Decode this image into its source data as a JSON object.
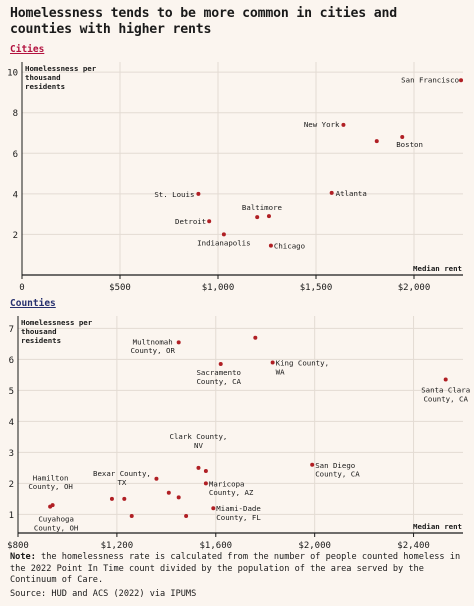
{
  "title": "Homelessness tends to be more common in cities and counties with higher rents",
  "note": {
    "label": "Note:",
    "text": " the homelessness rate is calculated from the number of people counted homeless in the 2022 Point In Time count divided by the population of the area served by the Continuum of Care."
  },
  "source": "Source: HUD and ACS (2022) via IPUMS",
  "colors": {
    "background": "#fbf5ef",
    "point": "#b01f24",
    "grid": "#e3dbd3",
    "axis": "#1a1a1a",
    "cities_heading": "#b3123f",
    "counties_heading": "#26306e"
  },
  "chart_data": [
    {
      "type": "scatter",
      "section_label": "Cities",
      "title": "",
      "xlabel": "Median rent",
      "ylabel": "Homelessness per thousand residents",
      "xlim": [
        0,
        2250
      ],
      "ylim": [
        0,
        10.5
      ],
      "x_ticks": [
        0,
        500,
        1000,
        1500,
        2000
      ],
      "x_tick_labels": [
        "0",
        "$500",
        "$1,000",
        "$1,500",
        "$2,000"
      ],
      "y_ticks": [
        2,
        4,
        6,
        8,
        10
      ],
      "y_tick_labels": [
        "2",
        "4",
        "6",
        "8",
        "10"
      ],
      "grid": true,
      "points": [
        {
          "x": 2240,
          "y": 9.6,
          "label": "San Francisco",
          "anchor": "end",
          "dx": -2,
          "dy": 2
        },
        {
          "x": 1640,
          "y": 7.4,
          "label": "New York",
          "anchor": "end",
          "dx": -4,
          "dy": 2
        },
        {
          "x": 1940,
          "y": 6.8,
          "label": "Boston",
          "anchor": "start",
          "dx": -6,
          "dy": 10
        },
        {
          "x": 1810,
          "y": 6.6,
          "label": "",
          "anchor": "start",
          "dx": 0,
          "dy": 0
        },
        {
          "x": 1580,
          "y": 4.05,
          "label": "Atlanta",
          "anchor": "start",
          "dx": 4,
          "dy": 3
        },
        {
          "x": 900,
          "y": 4.0,
          "label": "St. Louis",
          "anchor": "end",
          "dx": -4,
          "dy": 3
        },
        {
          "x": 1260,
          "y": 2.9,
          "label": "Baltimore",
          "anchor": "middle",
          "dx": -7,
          "dy": -6
        },
        {
          "x": 1200,
          "y": 2.85,
          "label": "",
          "anchor": "start",
          "dx": 0,
          "dy": 0
        },
        {
          "x": 955,
          "y": 2.65,
          "label": "Detroit",
          "anchor": "end",
          "dx": -3,
          "dy": 3
        },
        {
          "x": 1030,
          "y": 2.0,
          "label": "Indianapolis",
          "anchor": "middle",
          "dx": 0,
          "dy": 11
        },
        {
          "x": 1270,
          "y": 1.45,
          "label": "Chicago",
          "anchor": "start",
          "dx": 3,
          "dy": 3
        }
      ]
    },
    {
      "type": "scatter",
      "section_label": "Counties",
      "title": "",
      "xlabel": "Median rent",
      "ylabel": "Homelessness per thousand residents",
      "xlim": [
        800,
        2600
      ],
      "ylim": [
        0.4,
        7.4
      ],
      "x_ticks": [
        800,
        1200,
        1600,
        2000,
        2400
      ],
      "x_tick_labels": [
        "$800",
        "$1,200",
        "$1,600",
        "$2,000",
        "$2,400"
      ],
      "y_ticks": [
        1,
        2,
        3,
        4,
        5,
        6,
        7
      ],
      "y_tick_labels": [
        "1",
        "2",
        "3",
        "4",
        "5",
        "6",
        "7"
      ],
      "grid": true,
      "points": [
        {
          "x": 1450,
          "y": 6.55,
          "label": "Multnomah County, OR",
          "anchor": "middle",
          "dx": -26,
          "dy": 2
        },
        {
          "x": 1760,
          "y": 6.7,
          "label": "",
          "anchor": "start",
          "dx": 0,
          "dy": 0
        },
        {
          "x": 1830,
          "y": 5.9,
          "label": "King County, WA",
          "anchor": "start",
          "dx": 3,
          "dy": 3
        },
        {
          "x": 1620,
          "y": 5.85,
          "label": "Sacramento County, CA",
          "anchor": "middle",
          "dx": -2,
          "dy": 11
        },
        {
          "x": 2530,
          "y": 5.35,
          "label": "Santa Clara County, CA",
          "anchor": "middle",
          "dx": 0,
          "dy": 13
        },
        {
          "x": 1530,
          "y": 2.5,
          "label": "Clark County, NV",
          "anchor": "middle",
          "dx": 0,
          "dy": -20
        },
        {
          "x": 1560,
          "y": 2.4,
          "label": "",
          "anchor": "start",
          "dx": 0,
          "dy": 0
        },
        {
          "x": 1990,
          "y": 2.6,
          "label": "San Diego County, CA",
          "anchor": "start",
          "dx": 3,
          "dy": 3
        },
        {
          "x": 1360,
          "y": 2.15,
          "label": "",
          "anchor": "start",
          "dx": 0,
          "dy": 0
        },
        {
          "x": 1560,
          "y": 2.0,
          "label": "Maricopa County, AZ",
          "anchor": "start",
          "dx": 3,
          "dy": 3
        },
        {
          "x": 1410,
          "y": 1.7,
          "label": "",
          "anchor": "start",
          "dx": 0,
          "dy": 0
        },
        {
          "x": 1450,
          "y": 1.55,
          "label": "",
          "anchor": "start",
          "dx": 0,
          "dy": 0
        },
        {
          "x": 1180,
          "y": 1.5,
          "label": "Bexar County, TX",
          "anchor": "middle",
          "dx": 10,
          "dy": -14
        },
        {
          "x": 1230,
          "y": 1.5,
          "label": "",
          "anchor": "start",
          "dx": 0,
          "dy": 0
        },
        {
          "x": 940,
          "y": 1.3,
          "label": "Hamilton County, OH",
          "anchor": "middle",
          "dx": -2,
          "dy": -16
        },
        {
          "x": 930,
          "y": 1.25,
          "label": "Cuyahoga County, OH",
          "anchor": "middle",
          "dx": 6,
          "dy": 15
        },
        {
          "x": 1590,
          "y": 1.2,
          "label": "Miami-Dade County, FL",
          "anchor": "start",
          "dx": 3,
          "dy": 3
        },
        {
          "x": 1260,
          "y": 0.95,
          "label": "",
          "anchor": "start",
          "dx": 0,
          "dy": 0
        },
        {
          "x": 1480,
          "y": 0.95,
          "label": "",
          "anchor": "start",
          "dx": 0,
          "dy": 0
        }
      ]
    }
  ]
}
